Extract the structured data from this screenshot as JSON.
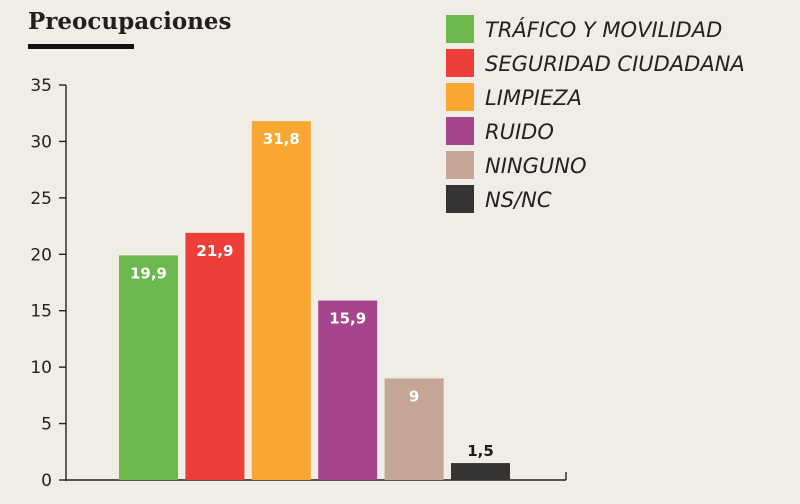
{
  "chart_data": {
    "type": "bar",
    "title": "Preocupaciones",
    "categories": [
      "TRÁFICO Y MOVILIDAD",
      "SEGURIDAD CIUDADANA",
      "LIMPIEZA",
      "RUIDO",
      "NINGUNO",
      "NS/NC"
    ],
    "values": [
      19.9,
      21.9,
      31.8,
      15.9,
      9,
      1.5
    ],
    "data_labels": [
      "19,9",
      "21,9",
      "31,8",
      "15,9",
      "9",
      "1,5"
    ],
    "colors": [
      "#6cb84d",
      "#ec3f3a",
      "#f8a732",
      "#a6458d",
      "#c4a596",
      "#363432"
    ],
    "label_colors": [
      "#ffffff",
      "#ffffff",
      "#ffffff",
      "#ffffff",
      "#ffffff",
      "#1a1a1a"
    ],
    "y_ticks": [
      "0",
      "5",
      "10",
      "15",
      "20",
      "25",
      "30",
      "35"
    ],
    "ylim": [
      0,
      35
    ],
    "xlabel": "",
    "ylabel": "",
    "grid": false,
    "legend_position": "top-right"
  }
}
